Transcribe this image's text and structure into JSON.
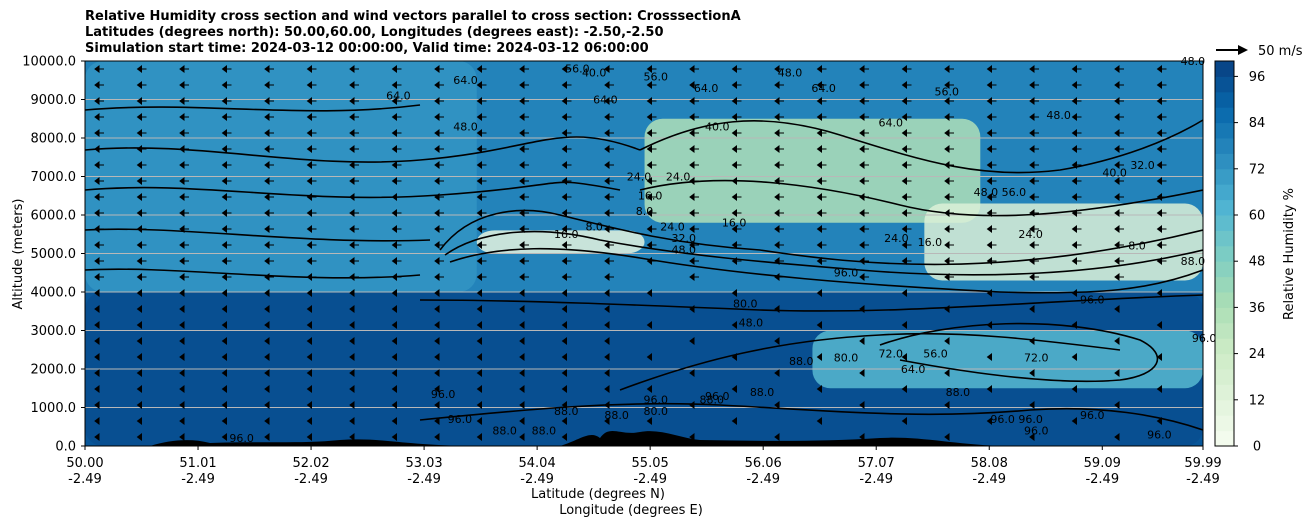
{
  "chart": {
    "title_lines": [
      "Relative Humidity cross section and wind vectors parallel to cross section: CrosssectionA",
      "Latitudes (degrees north): 50.00,60.00, Longitudes (degrees east): -2.50,-2.50",
      "Simulation start time: 2024-03-12 00:00:00, Valid time: 2024-03-12 06:00:00"
    ],
    "wind_key": "50 m/s"
  },
  "chart_data": {
    "type": "heatmap",
    "xlabel_lines": [
      "Latitude (degrees N)",
      "Longitude (degrees E)"
    ],
    "ylabel": "Altitude (meters)",
    "colorbar_label": "Relative Humidity %",
    "x_ticks": [
      {
        "lat": "50.00",
        "lon": "-2.49"
      },
      {
        "lat": "51.01",
        "lon": "-2.49"
      },
      {
        "lat": "52.02",
        "lon": "-2.49"
      },
      {
        "lat": "53.03",
        "lon": "-2.49"
      },
      {
        "lat": "54.04",
        "lon": "-2.49"
      },
      {
        "lat": "55.05",
        "lon": "-2.49"
      },
      {
        "lat": "56.06",
        "lon": "-2.49"
      },
      {
        "lat": "57.07",
        "lon": "-2.49"
      },
      {
        "lat": "58.08",
        "lon": "-2.49"
      },
      {
        "lat": "59.09",
        "lon": "-2.49"
      },
      {
        "lat": "59.99",
        "lon": "-2.49"
      }
    ],
    "y_ticks": [
      "0.0",
      "1000.0",
      "2000.0",
      "3000.0",
      "4000.0",
      "5000.0",
      "6000.0",
      "7000.0",
      "8000.0",
      "9000.0",
      "10000.0"
    ],
    "xlim": [
      50.0,
      59.99
    ],
    "ylim": [
      0,
      10000
    ],
    "colorbar_ticks": [
      "0",
      "12",
      "24",
      "36",
      "48",
      "60",
      "72",
      "84",
      "96"
    ],
    "colorbar_range": [
      0,
      100
    ],
    "colormap": "GnBu",
    "grid": "horizontal",
    "regions": [
      {
        "x": [
          50.0,
          59.99
        ],
        "y": [
          0,
          4000
        ],
        "rh": 96
      },
      {
        "x": [
          50.0,
          53.5
        ],
        "y": [
          4000,
          10000
        ],
        "rh": 72
      },
      {
        "x": [
          53.5,
          55.0
        ],
        "y": [
          5000,
          5600
        ],
        "rh": 10
      },
      {
        "x": [
          55.0,
          58.0
        ],
        "y": [
          5800,
          8500
        ],
        "rh": 35
      },
      {
        "x": [
          57.5,
          59.99
        ],
        "y": [
          4300,
          6300
        ],
        "rh": 15
      },
      {
        "x": [
          56.5,
          59.99
        ],
        "y": [
          1500,
          3000
        ],
        "rh": 60
      }
    ],
    "contour_labels": [
      {
        "text": "64.0",
        "x": 53.4,
        "y": 9400
      },
      {
        "text": "56.0",
        "x": 54.4,
        "y": 9700
      },
      {
        "text": "40.0",
        "x": 54.55,
        "y": 9600
      },
      {
        "text": "56.0",
        "x": 55.1,
        "y": 9500
      },
      {
        "text": "48.0",
        "x": 56.3,
        "y": 9600
      },
      {
        "text": "64.0",
        "x": 55.55,
        "y": 9200
      },
      {
        "text": "64.0",
        "x": 56.6,
        "y": 9200
      },
      {
        "text": "56.0",
        "x": 57.7,
        "y": 9100
      },
      {
        "text": "64.0",
        "x": 52.8,
        "y": 9000
      },
      {
        "text": "64.0",
        "x": 54.65,
        "y": 8900
      },
      {
        "text": "48.0",
        "x": 53.4,
        "y": 8200
      },
      {
        "text": "40.0",
        "x": 55.65,
        "y": 8200
      },
      {
        "text": "64.0",
        "x": 57.2,
        "y": 8300
      },
      {
        "text": "48.0",
        "x": 58.7,
        "y": 8500
      },
      {
        "text": "48.0",
        "x": 59.9,
        "y": 9900
      },
      {
        "text": "24.0",
        "x": 54.95,
        "y": 6900
      },
      {
        "text": "24.0",
        "x": 55.3,
        "y": 6900
      },
      {
        "text": "16.0",
        "x": 55.05,
        "y": 6400
      },
      {
        "text": "8.0",
        "x": 55.0,
        "y": 6000
      },
      {
        "text": "16.0",
        "x": 54.3,
        "y": 5400
      },
      {
        "text": "8.0",
        "x": 54.55,
        "y": 5600
      },
      {
        "text": "24.0",
        "x": 55.25,
        "y": 5600
      },
      {
        "text": "32.0",
        "x": 55.35,
        "y": 5300
      },
      {
        "text": "48.0",
        "x": 55.35,
        "y": 5000
      },
      {
        "text": "16.0",
        "x": 55.8,
        "y": 5700
      },
      {
        "text": "48.0",
        "x": 58.05,
        "y": 6500
      },
      {
        "text": "56.0",
        "x": 58.3,
        "y": 6500
      },
      {
        "text": "40.0",
        "x": 59.2,
        "y": 7000
      },
      {
        "text": "32.0",
        "x": 59.45,
        "y": 7200
      },
      {
        "text": "24.0",
        "x": 58.45,
        "y": 5400
      },
      {
        "text": "24.0",
        "x": 57.25,
        "y": 5300
      },
      {
        "text": "16.0",
        "x": 57.55,
        "y": 5200
      },
      {
        "text": "8.0",
        "x": 59.4,
        "y": 5100
      },
      {
        "text": "88.0",
        "x": 59.9,
        "y": 4700
      },
      {
        "text": "96.0",
        "x": 56.8,
        "y": 4400
      },
      {
        "text": "96.0",
        "x": 59.0,
        "y": 3700
      },
      {
        "text": "96.0",
        "x": 60.0,
        "y": 2700
      },
      {
        "text": "80.0",
        "x": 55.9,
        "y": 3600
      },
      {
        "text": "48.0",
        "x": 55.95,
        "y": 3100
      },
      {
        "text": "88.0",
        "x": 56.4,
        "y": 2100
      },
      {
        "text": "80.0",
        "x": 56.8,
        "y": 2200
      },
      {
        "text": "72.0",
        "x": 57.2,
        "y": 2300
      },
      {
        "text": "64.0",
        "x": 57.4,
        "y": 1900
      },
      {
        "text": "56.0",
        "x": 57.6,
        "y": 2300
      },
      {
        "text": "72.0",
        "x": 58.5,
        "y": 2200
      },
      {
        "text": "88.0",
        "x": 57.8,
        "y": 1300
      },
      {
        "text": "96.0",
        "x": 53.2,
        "y": 1250
      },
      {
        "text": "96.0",
        "x": 53.35,
        "y": 600
      },
      {
        "text": "96.0",
        "x": 55.1,
        "y": 1100
      },
      {
        "text": "96.0",
        "x": 55.65,
        "y": 1200
      },
      {
        "text": "88.0",
        "x": 55.6,
        "y": 1100
      },
      {
        "text": "88.0",
        "x": 54.3,
        "y": 800
      },
      {
        "text": "80.0",
        "x": 55.1,
        "y": 800
      },
      {
        "text": "88.0",
        "x": 54.75,
        "y": 700
      },
      {
        "text": "88.0",
        "x": 56.05,
        "y": 1300
      },
      {
        "text": "96.0",
        "x": 59.0,
        "y": 700
      },
      {
        "text": "96.0",
        "x": 58.5,
        "y": 300
      },
      {
        "text": "96.0",
        "x": 59.6,
        "y": 200
      },
      {
        "text": "96.0",
        "x": 58.2,
        "y": 600
      },
      {
        "text": "96.0",
        "x": 58.45,
        "y": 600
      },
      {
        "text": "88.0",
        "x": 54.1,
        "y": 300
      },
      {
        "text": "88.0",
        "x": 53.75,
        "y": 300
      },
      {
        "text": "96.0",
        "x": 51.4,
        "y": 100
      }
    ]
  }
}
